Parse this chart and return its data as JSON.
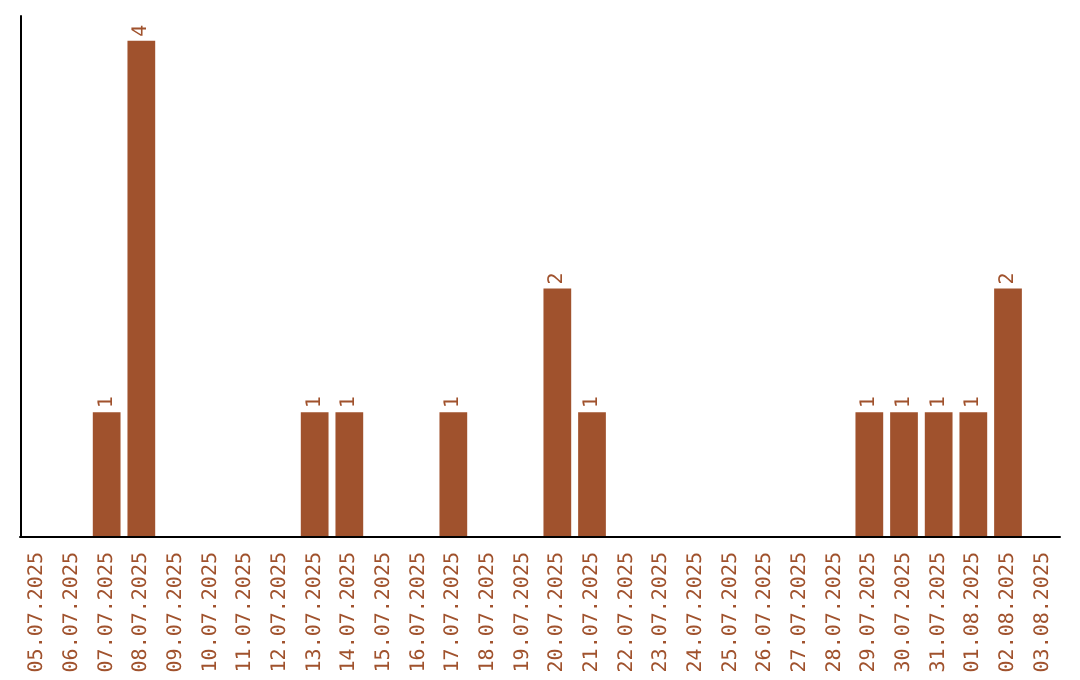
{
  "chart_data": {
    "type": "bar",
    "categories": [
      "05.07.2025",
      "06.07.2025",
      "07.07.2025",
      "08.07.2025",
      "09.07.2025",
      "10.07.2025",
      "11.07.2025",
      "12.07.2025",
      "13.07.2025",
      "14.07.2025",
      "15.07.2025",
      "16.07.2025",
      "17.07.2025",
      "18.07.2025",
      "19.07.2025",
      "20.07.2025",
      "21.07.2025",
      "22.07.2025",
      "23.07.2025",
      "24.07.2025",
      "25.07.2025",
      "26.07.2025",
      "27.07.2025",
      "28.07.2025",
      "29.07.2025",
      "30.07.2025",
      "31.07.2025",
      "01.08.2025",
      "02.08.2025",
      "03.08.2025"
    ],
    "values": [
      0,
      0,
      1,
      4,
      0,
      0,
      0,
      0,
      1,
      1,
      0,
      0,
      1,
      0,
      0,
      2,
      1,
      0,
      0,
      0,
      0,
      0,
      0,
      0,
      1,
      1,
      1,
      1,
      2,
      0
    ],
    "value_labels": [
      null,
      null,
      "1",
      "4",
      null,
      null,
      null,
      null,
      "1",
      "1",
      null,
      null,
      "1",
      null,
      null,
      "2",
      "1",
      null,
      null,
      null,
      null,
      null,
      null,
      null,
      "1",
      "1",
      "1",
      "1",
      "2",
      null
    ],
    "color": "#a0522d"
  }
}
